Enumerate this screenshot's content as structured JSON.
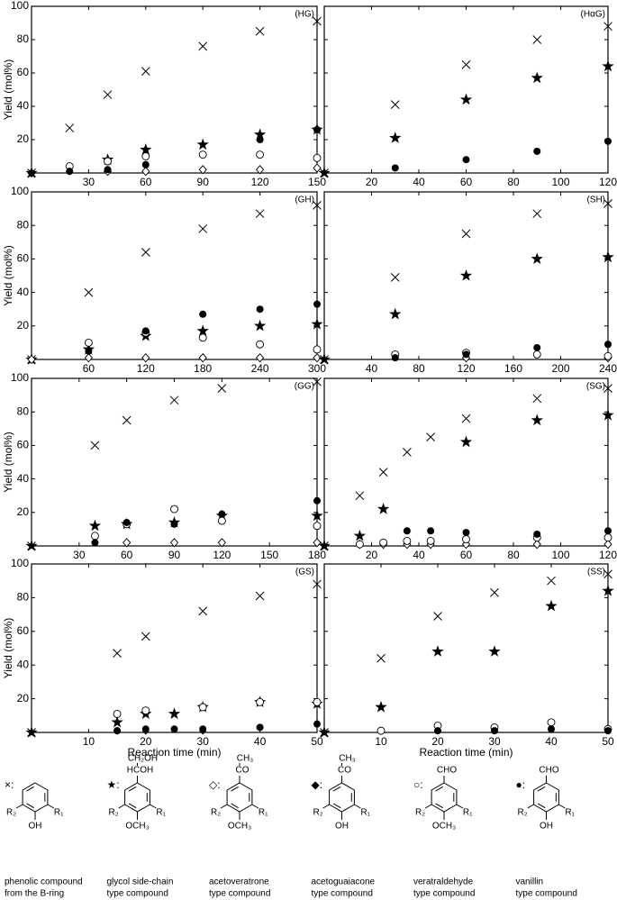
{
  "chart_data": [
    {
      "type": "scatter",
      "title": "(HG)",
      "ylabel": "Yield (mol%)",
      "xlim": [
        0,
        150
      ],
      "xticks": [
        30,
        60,
        90,
        120,
        150
      ],
      "ylim": [
        0,
        100
      ],
      "yticks": [
        20,
        40,
        60,
        80,
        100
      ],
      "show_ytick_labels": true,
      "series": [
        {
          "marker": "cross",
          "x": [
            0,
            20,
            40,
            60,
            90,
            120,
            150
          ],
          "values": [
            0,
            27,
            47,
            61,
            76,
            85,
            91
          ]
        },
        {
          "marker": "star",
          "x": [
            0,
            40,
            60,
            90,
            120,
            150
          ],
          "values": [
            0,
            8,
            14,
            17,
            23,
            26
          ]
        },
        {
          "marker": "diamond-open",
          "x": [
            0,
            40,
            60,
            90,
            120,
            150
          ],
          "values": [
            0,
            1,
            1,
            2,
            2,
            3
          ]
        },
        {
          "marker": "diamond-filled",
          "x": [
            0,
            20
          ],
          "values": [
            0,
            1
          ]
        },
        {
          "marker": "circle-open",
          "x": [
            20,
            40,
            60,
            90,
            120,
            150
          ],
          "values": [
            4,
            7,
            10,
            11,
            11,
            9
          ]
        },
        {
          "marker": "circle-filled",
          "x": [
            20,
            40,
            60,
            120,
            150
          ],
          "values": [
            1,
            2,
            5,
            20,
            26
          ]
        }
      ]
    },
    {
      "type": "scatter",
      "title": "(HαG)",
      "xlim": [
        0,
        120
      ],
      "xticks": [
        20,
        40,
        60,
        80,
        100,
        120
      ],
      "ylim": [
        0,
        100
      ],
      "yticks": [
        20,
        40,
        60,
        80,
        100
      ],
      "show_ytick_labels": false,
      "series": [
        {
          "marker": "cross",
          "x": [
            0,
            30,
            60,
            90,
            120
          ],
          "values": [
            0,
            41,
            65,
            80,
            88
          ]
        },
        {
          "marker": "star",
          "x": [
            0,
            30,
            60,
            90,
            120
          ],
          "values": [
            0,
            21,
            44,
            57,
            64
          ]
        },
        {
          "marker": "circle-filled",
          "x": [
            30,
            60,
            90,
            120
          ],
          "values": [
            3,
            8,
            13,
            19
          ]
        }
      ]
    },
    {
      "type": "scatter",
      "title": "(GH)",
      "ylabel": "Yield (mol%)",
      "xlim": [
        0,
        300
      ],
      "xticks": [
        60,
        120,
        180,
        240,
        300
      ],
      "ylim": [
        0,
        100
      ],
      "yticks": [
        20,
        40,
        60,
        80,
        100
      ],
      "show_ytick_labels": true,
      "series": [
        {
          "marker": "cross",
          "x": [
            0,
            60,
            120,
            180,
            240,
            300
          ],
          "values": [
            0,
            40,
            64,
            78,
            87,
            92
          ]
        },
        {
          "marker": "star",
          "x": [
            0,
            60,
            120,
            180,
            240,
            300
          ],
          "values": [
            0,
            6,
            14,
            17,
            20,
            21
          ]
        },
        {
          "marker": "diamond-open",
          "x": [
            0,
            60,
            120,
            180,
            240,
            300
          ],
          "values": [
            0,
            1,
            1,
            1,
            1,
            1
          ]
        },
        {
          "marker": "circle-open",
          "x": [
            60,
            120,
            180,
            240,
            300
          ],
          "values": [
            10,
            16,
            13,
            9,
            6
          ]
        },
        {
          "marker": "circle-filled",
          "x": [
            60,
            120,
            180,
            240,
            300
          ],
          "values": [
            5,
            17,
            27,
            30,
            33
          ]
        }
      ]
    },
    {
      "type": "scatter",
      "title": "(SH)",
      "xlim": [
        0,
        240
      ],
      "xticks": [
        40,
        80,
        120,
        160,
        200,
        240
      ],
      "ylim": [
        0,
        100
      ],
      "yticks": [
        20,
        40,
        60,
        80,
        100
      ],
      "show_ytick_labels": false,
      "series": [
        {
          "marker": "cross",
          "x": [
            0,
            60,
            120,
            180,
            240
          ],
          "values": [
            0,
            49,
            75,
            87,
            93
          ]
        },
        {
          "marker": "star",
          "x": [
            0,
            60,
            120,
            180,
            240
          ],
          "values": [
            0,
            27,
            50,
            60,
            61
          ]
        },
        {
          "marker": "diamond-open",
          "x": [
            120,
            240
          ],
          "values": [
            1,
            1
          ]
        },
        {
          "marker": "circle-open",
          "x": [
            60,
            120,
            180,
            240
          ],
          "values": [
            3,
            4,
            3,
            2
          ]
        },
        {
          "marker": "circle-filled",
          "x": [
            60,
            120,
            180,
            240
          ],
          "values": [
            1,
            3,
            7,
            9
          ]
        }
      ]
    },
    {
      "type": "scatter",
      "title": "(GG)",
      "ylabel": "Yield (mol%)",
      "xlim": [
        0,
        180
      ],
      "xticks": [
        30,
        60,
        90,
        120,
        150,
        180
      ],
      "ylim": [
        0,
        100
      ],
      "yticks": [
        20,
        40,
        60,
        80,
        100
      ],
      "show_ytick_labels": true,
      "series": [
        {
          "marker": "cross",
          "x": [
            0,
            40,
            60,
            90,
            120,
            180
          ],
          "values": [
            0,
            60,
            75,
            87,
            94,
            98
          ]
        },
        {
          "marker": "star",
          "x": [
            0,
            40,
            60,
            90,
            120,
            180
          ],
          "values": [
            0,
            12,
            13,
            14,
            18,
            18
          ]
        },
        {
          "marker": "diamond-open",
          "x": [
            60,
            90,
            120,
            180
          ],
          "values": [
            2,
            2,
            2,
            2
          ]
        },
        {
          "marker": "circle-open",
          "x": [
            40,
            60,
            90,
            120,
            180
          ],
          "values": [
            6,
            13,
            22,
            15,
            12
          ]
        },
        {
          "marker": "circle-filled",
          "x": [
            40,
            60,
            90,
            120,
            180
          ],
          "values": [
            2,
            14,
            13,
            19,
            27
          ]
        }
      ]
    },
    {
      "type": "scatter",
      "title": "(SG)",
      "xlim": [
        0,
        120
      ],
      "xticks": [
        20,
        40,
        60,
        80,
        100,
        120
      ],
      "ylim": [
        0,
        100
      ],
      "yticks": [
        20,
        40,
        60,
        80,
        100
      ],
      "show_ytick_labels": false,
      "series": [
        {
          "marker": "cross",
          "x": [
            0,
            15,
            25,
            35,
            45,
            60,
            90,
            120
          ],
          "values": [
            0,
            30,
            44,
            56,
            65,
            76,
            88,
            94
          ]
        },
        {
          "marker": "star",
          "x": [
            0,
            15,
            25,
            60,
            90,
            120
          ],
          "values": [
            0,
            6,
            22,
            62,
            75,
            78
          ]
        },
        {
          "marker": "diamond-open",
          "x": [
            15,
            25,
            35,
            45,
            60,
            90,
            120
          ],
          "values": [
            1,
            1,
            1,
            1,
            1,
            1,
            1
          ]
        },
        {
          "marker": "circle-open",
          "x": [
            15,
            25,
            35,
            45,
            60,
            90,
            120
          ],
          "values": [
            1,
            2,
            3,
            3,
            4,
            5,
            5
          ]
        },
        {
          "marker": "circle-filled",
          "x": [
            35,
            45,
            60,
            90,
            120
          ],
          "values": [
            9,
            9,
            8,
            7,
            9
          ]
        }
      ]
    },
    {
      "type": "scatter",
      "title": "(GS)",
      "ylabel": "Yield (mol%)",
      "xlabel": "Reaction time (min)",
      "xlim": [
        0,
        50
      ],
      "xticks": [
        10,
        20,
        30,
        40,
        50
      ],
      "ylim": [
        0,
        100
      ],
      "yticks": [
        20,
        40,
        60,
        80,
        100
      ],
      "show_ytick_labels": true,
      "series": [
        {
          "marker": "cross",
          "x": [
            0,
            15,
            20,
            30,
            40,
            50
          ],
          "values": [
            0,
            47,
            57,
            72,
            81,
            88
          ]
        },
        {
          "marker": "star",
          "x": [
            0,
            15,
            20,
            25,
            30,
            40,
            50
          ],
          "values": [
            0,
            6,
            11,
            11,
            15,
            18,
            17
          ]
        },
        {
          "marker": "diamond-filled",
          "x": [
            15,
            20,
            30
          ],
          "values": [
            1,
            1,
            1
          ]
        },
        {
          "marker": "circle-open",
          "x": [
            15,
            20,
            30,
            40,
            50
          ],
          "values": [
            11,
            13,
            15,
            18,
            18
          ]
        },
        {
          "marker": "circle-filled",
          "x": [
            15,
            20,
            25,
            30,
            40,
            50
          ],
          "values": [
            1,
            2,
            2,
            2,
            3,
            5
          ]
        }
      ]
    },
    {
      "type": "scatter",
      "title": "(SS)",
      "xlabel": "Reaction time (min)",
      "xlim": [
        0,
        50
      ],
      "xticks": [
        10,
        20,
        30,
        40,
        50
      ],
      "ylim": [
        0,
        100
      ],
      "yticks": [
        20,
        40,
        60,
        80,
        100
      ],
      "show_ytick_labels": false,
      "series": [
        {
          "marker": "cross",
          "x": [
            0,
            10,
            20,
            30,
            40,
            50
          ],
          "values": [
            0,
            44,
            69,
            83,
            90,
            94
          ]
        },
        {
          "marker": "star",
          "x": [
            0,
            10,
            20,
            30,
            40,
            50
          ],
          "values": [
            0,
            15,
            48,
            48,
            75,
            84
          ]
        },
        {
          "marker": "circle-open",
          "x": [
            10,
            20,
            30,
            40,
            50
          ],
          "values": [
            1,
            4,
            3,
            6,
            2
          ]
        },
        {
          "marker": "circle-filled",
          "x": [
            20,
            30,
            40,
            50
          ],
          "values": [
            1,
            1,
            2,
            1
          ]
        }
      ]
    }
  ],
  "legend": [
    {
      "symbol": "×:",
      "top": [],
      "bottom": "OH",
      "r1": "R₁",
      "r2": "R₂",
      "caption": [
        "phenolic compound",
        "from the B-ring"
      ]
    },
    {
      "symbol": "★:",
      "top": [
        "CH₂OH",
        "HCOH"
      ],
      "bottom": "OCH₃",
      "r1": "R₁",
      "r2": "R₂",
      "caption": [
        "glycol side-chain",
        "type compound"
      ]
    },
    {
      "symbol": "◇:",
      "top": [
        "CH₃",
        "CO"
      ],
      "bottom": "OCH₃",
      "r1": "R₁",
      "r2": "R₂",
      "caption": [
        "acetoveratrone",
        "type compound"
      ]
    },
    {
      "symbol": "◆:",
      "top": [
        "CH₃",
        "CO"
      ],
      "bottom": "OH",
      "r1": "R₁",
      "r2": "R₂",
      "caption": [
        "acetoguaiacone",
        "type compound"
      ]
    },
    {
      "symbol": "○:",
      "top": [
        "CHO"
      ],
      "bottom": "OCH₃",
      "r1": "R₁",
      "r2": "R₂",
      "caption": [
        "veratraldehyde",
        "type compound"
      ]
    },
    {
      "symbol": "●:",
      "top": [
        "CHO"
      ],
      "bottom": "OH",
      "r1": "R₁",
      "r2": "R₂",
      "caption": [
        "vanillin",
        "type compound"
      ]
    }
  ]
}
